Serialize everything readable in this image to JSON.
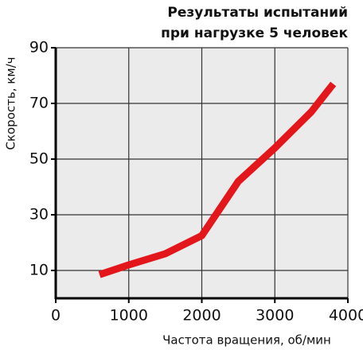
{
  "chart_data": {
    "type": "line",
    "title": [
      "Результаты испытаний",
      "при нагрузке 5 человек"
    ],
    "x_label": "Частота вращения, об/мин",
    "y_label": "Скорость, км/ч",
    "x": [
      600,
      1000,
      1500,
      2000,
      2500,
      3000,
      3500,
      3800
    ],
    "series": [
      {
        "color": "#e3161b",
        "values": [
          8.5,
          12,
          16,
          22.5,
          42,
          54,
          67,
          77
        ]
      }
    ],
    "xlim": [
      0,
      4000
    ],
    "xticks": [
      0,
      1000,
      2000,
      3000,
      4000
    ],
    "ylim": [
      0,
      90
    ],
    "yticks": [
      10,
      30,
      50,
      70,
      90
    ],
    "grid": true
  }
}
